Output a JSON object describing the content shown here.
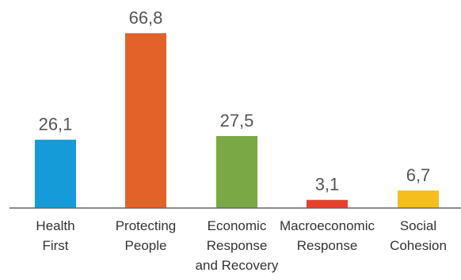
{
  "chart_data": {
    "type": "bar",
    "categories": [
      [
        "Health",
        "First"
      ],
      [
        "Protecting",
        "People"
      ],
      [
        "Economic",
        "Response",
        "and Recovery"
      ],
      [
        "Macroeconomic",
        "Response"
      ],
      [
        "Social",
        "Cohesion"
      ]
    ],
    "values": [
      26.1,
      66.8,
      27.5,
      3.1,
      6.7
    ],
    "value_labels": [
      "26,1",
      "66,8",
      "27,5",
      "3,1",
      "6,7"
    ],
    "colors": [
      "#159bd7",
      "#e2622a",
      "#7aa845",
      "#e8412b",
      "#f6be1a"
    ],
    "axis_color": "#666666",
    "title": "",
    "xlabel": "",
    "ylabel": "",
    "ylim": [
      0,
      66.8
    ],
    "grid": false,
    "legend": "none"
  }
}
